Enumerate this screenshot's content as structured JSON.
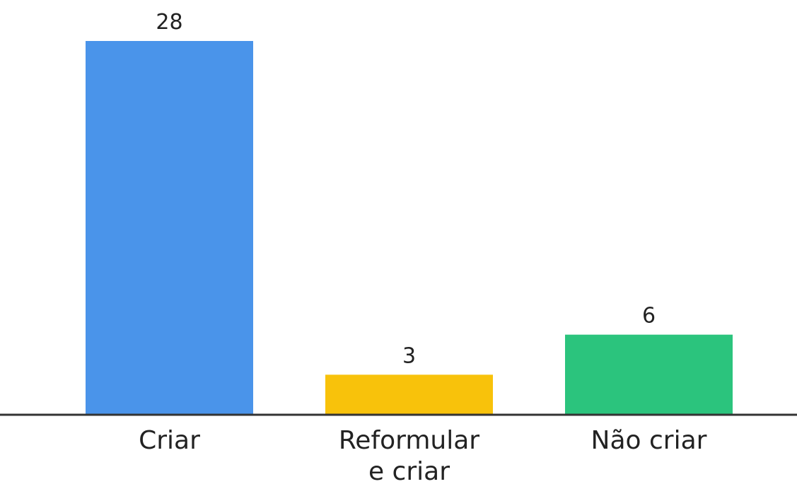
{
  "chart_data": {
    "type": "bar",
    "categories": [
      "Criar",
      "Reformular e criar",
      "Não criar"
    ],
    "category_lines": [
      [
        "Criar"
      ],
      [
        "Reformular",
        "e criar"
      ],
      [
        "Não criar"
      ]
    ],
    "values": [
      28,
      3,
      6
    ],
    "data_labels": [
      "28",
      "3",
      "6"
    ],
    "colors": [
      "#4a94ea",
      "#f8c20b",
      "#2bc47d"
    ],
    "axis_color": "#333333",
    "title": "",
    "xlabel": "",
    "ylabel": "",
    "ylim": [
      0,
      28
    ],
    "grid": false,
    "legend": "none"
  }
}
